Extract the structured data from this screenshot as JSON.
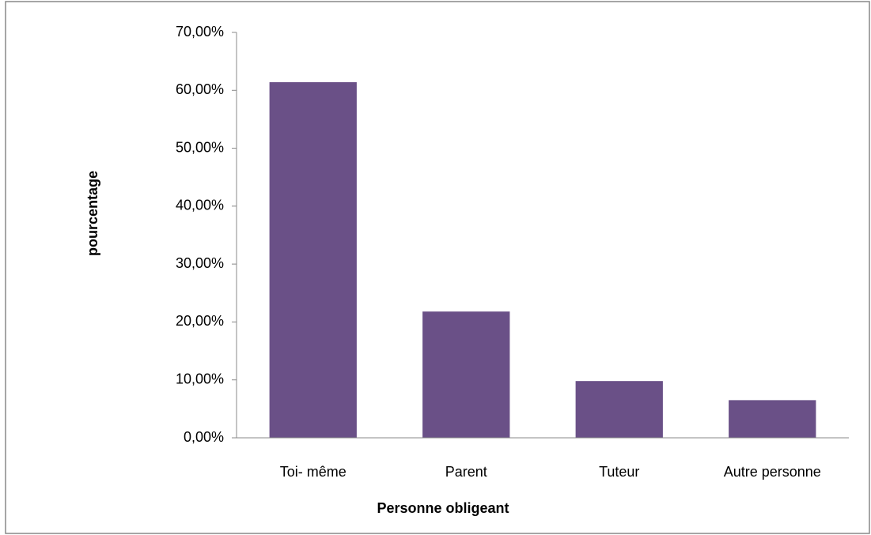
{
  "chart_data": {
    "type": "bar",
    "categories": [
      "Toi- même",
      "Parent",
      "Tuteur",
      "Autre personne"
    ],
    "values": [
      61.4,
      21.8,
      9.8,
      6.5
    ],
    "color": "#6a5087",
    "xlabel": "Personne obligeant",
    "ylabel": "pourcentage",
    "ylim": [
      0,
      70
    ],
    "yticks": [
      {
        "value": 0,
        "label": "0,00%"
      },
      {
        "value": 10,
        "label": "10,00%"
      },
      {
        "value": 20,
        "label": "20,00%"
      },
      {
        "value": 30,
        "label": "30,00%"
      },
      {
        "value": 40,
        "label": "40,00%"
      },
      {
        "value": 50,
        "label": "50,00%"
      },
      {
        "value": 60,
        "label": "60,00%"
      },
      {
        "value": 70,
        "label": "70,00%"
      }
    ],
    "grid": false
  }
}
